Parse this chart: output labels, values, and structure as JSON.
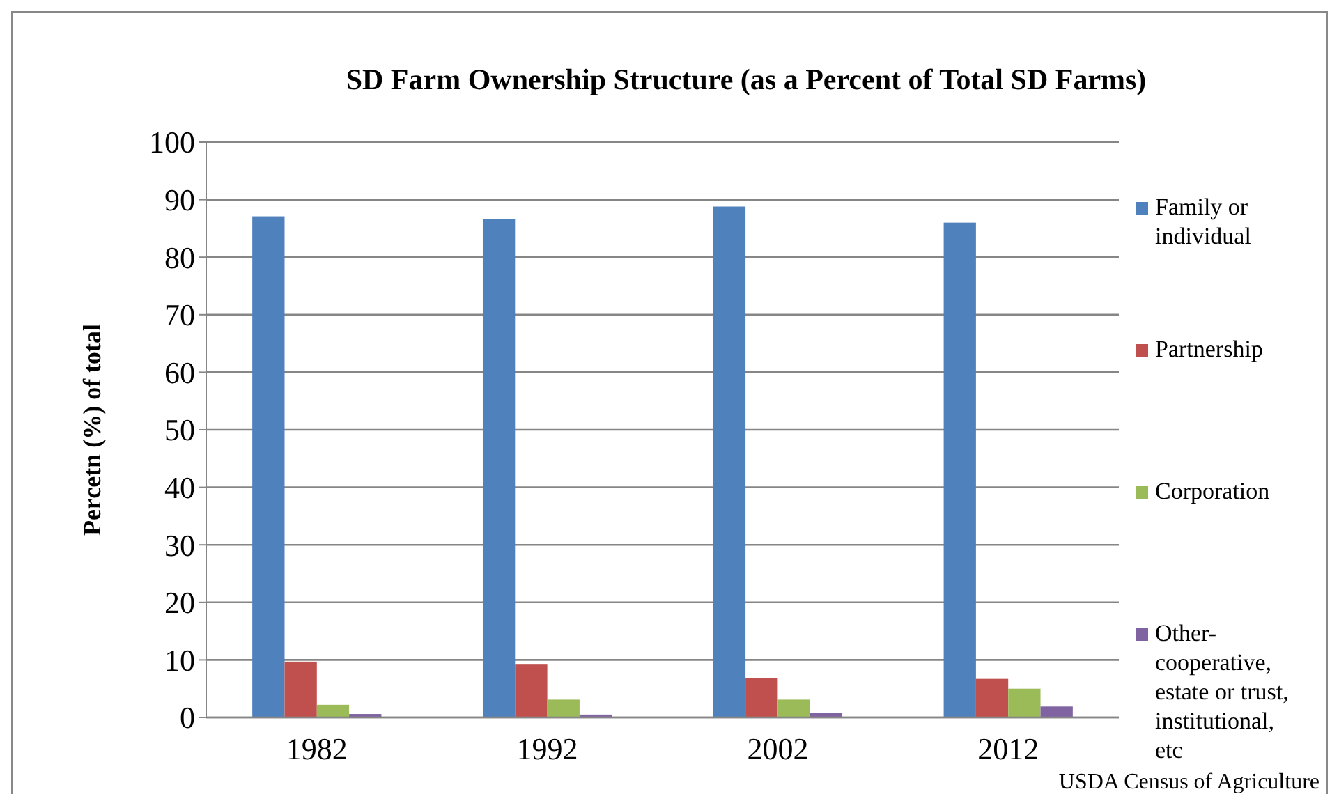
{
  "chart_data": {
    "type": "bar",
    "title": "SD Farm Ownership Structure (as a Percent of Total SD Farms)",
    "ylabel": "Percetn (%) of total",
    "categories": [
      "1982",
      "1992",
      "2002",
      "2012"
    ],
    "series": [
      {
        "name": "Family or individual",
        "color": "#4f81bd",
        "values": [
          87.1,
          86.6,
          88.8,
          86.0
        ]
      },
      {
        "name": "Partnership",
        "color": "#c0504d",
        "values": [
          9.7,
          9.3,
          6.8,
          6.7
        ]
      },
      {
        "name": "Corporation",
        "color": "#9bbb59",
        "values": [
          2.2,
          3.1,
          3.1,
          5.0
        ]
      },
      {
        "name": "Other- cooperative, estate or trust, institutional, etc",
        "color": "#8064a2",
        "values": [
          0.6,
          0.5,
          0.8,
          1.9
        ]
      }
    ],
    "ylim": [
      0,
      100
    ],
    "yticks": [
      0,
      10,
      20,
      30,
      40,
      50,
      60,
      70,
      80,
      90,
      100
    ],
    "grid": "y",
    "legend": "right",
    "annotations": [
      "USDA Census of Agriculture"
    ]
  }
}
